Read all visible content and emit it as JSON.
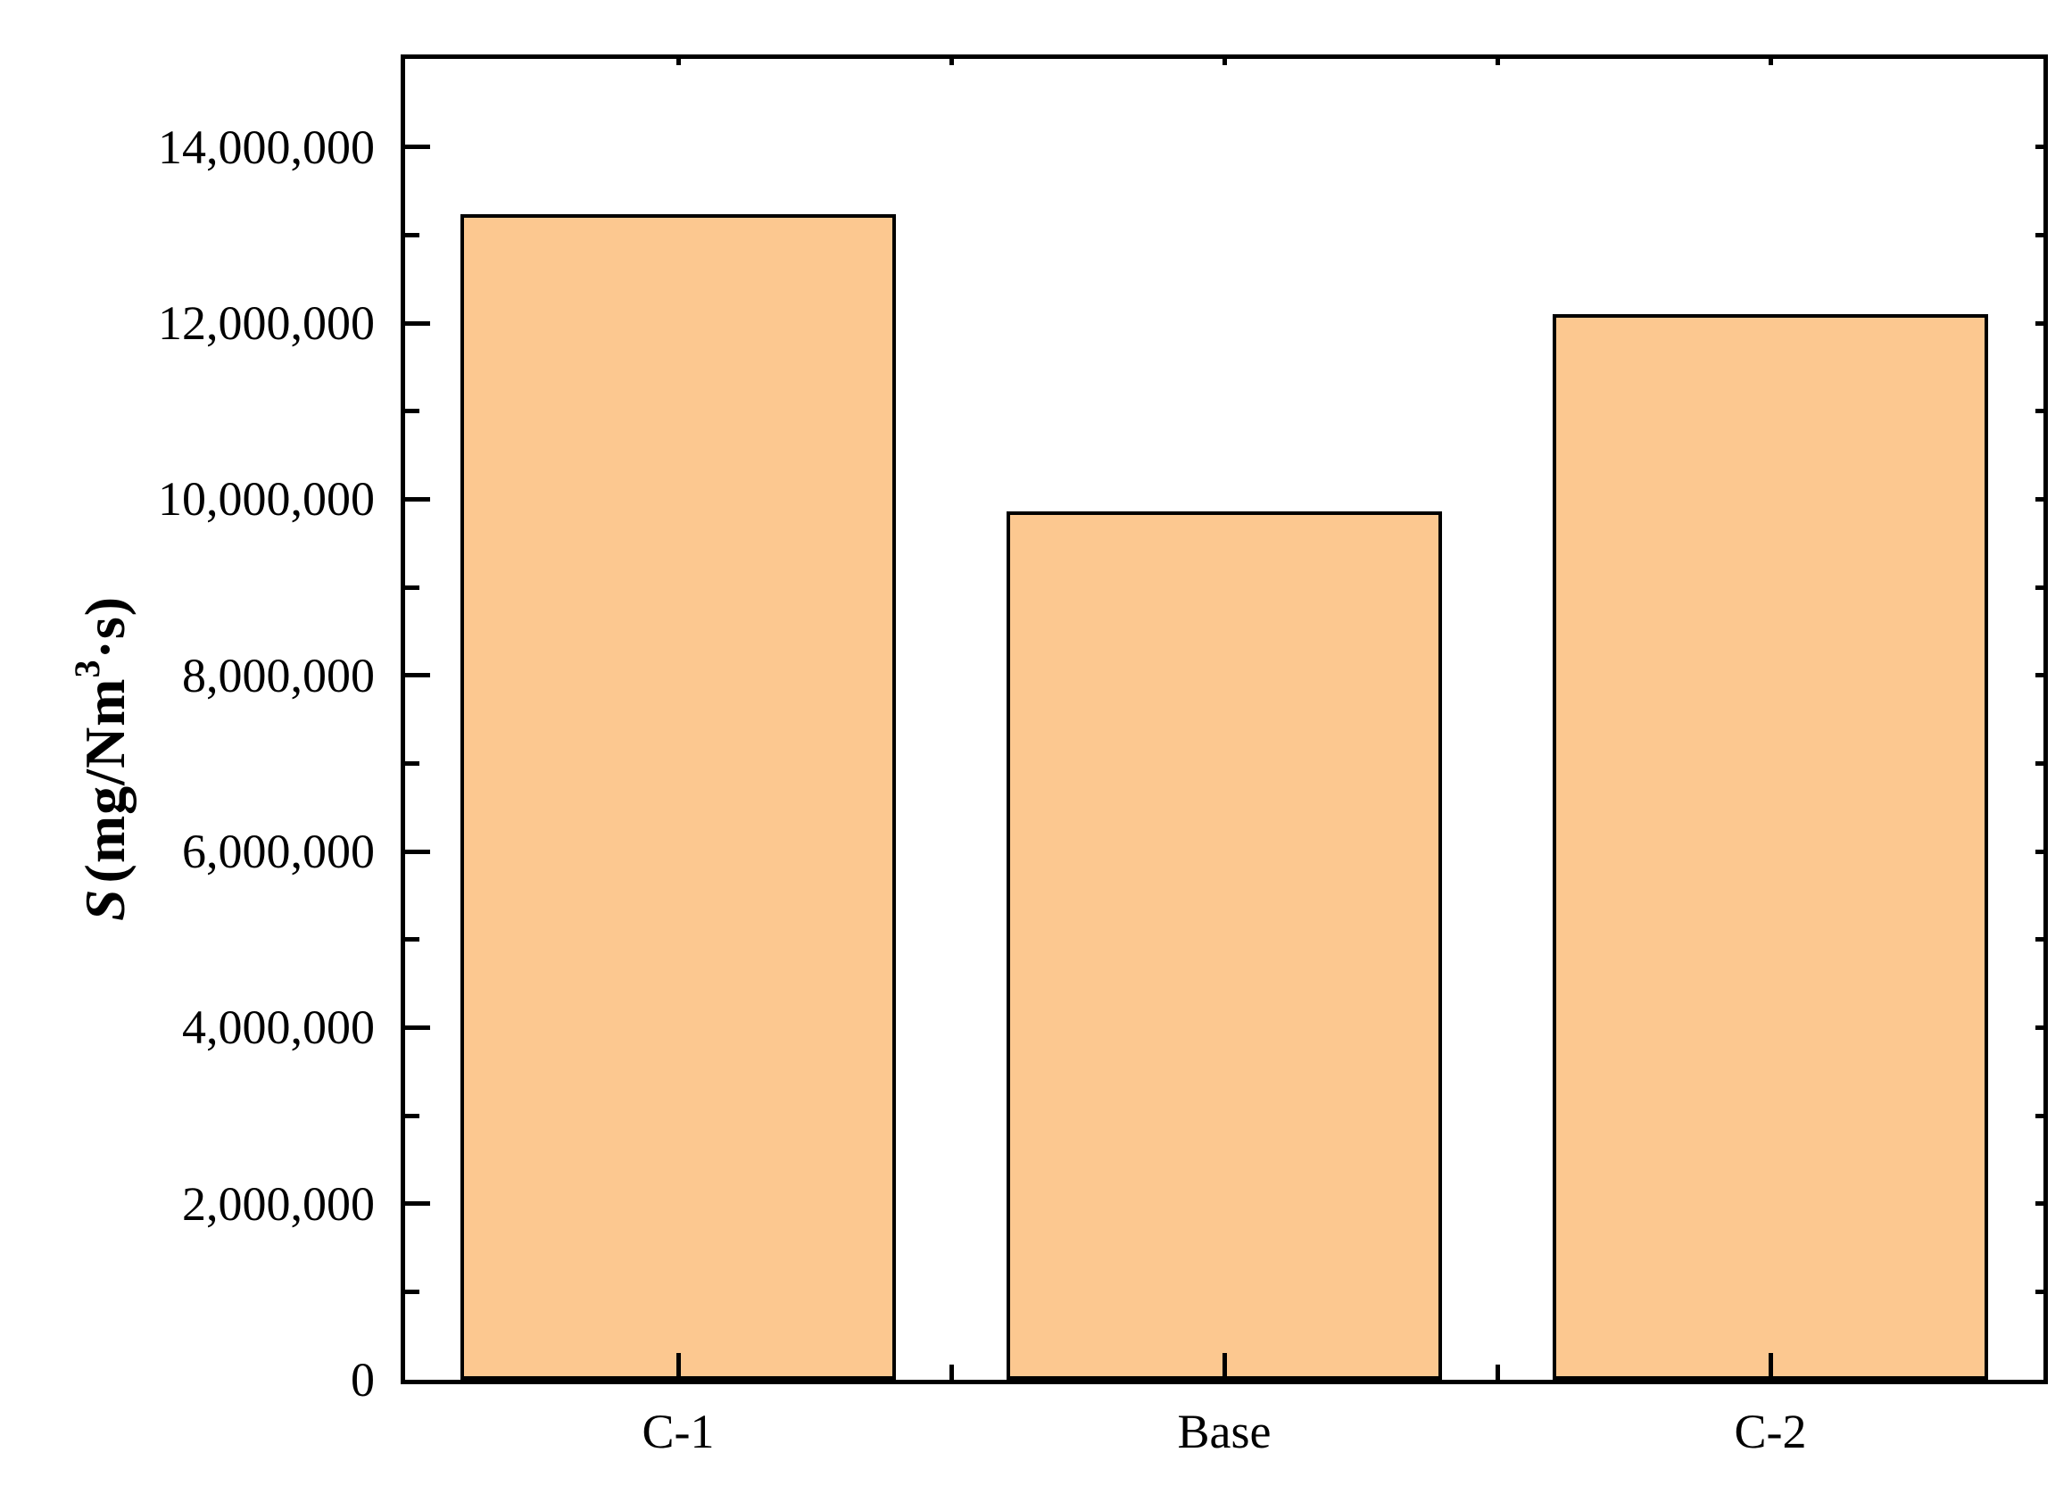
{
  "chart_data": {
    "type": "bar",
    "title": "",
    "categories": [
      "C-1",
      "Base",
      "C-2"
    ],
    "values": [
      13240000,
      9860000,
      12100000
    ],
    "xlabel": "",
    "ylabel": {
      "symbol": "S",
      "prefix": "(mg/Nm",
      "sup": "3",
      "suffix": "·s)"
    },
    "ylim": [
      0,
      15000000
    ],
    "ytick_step": 2000000,
    "yminor_step": 1000000,
    "yticks": [
      {
        "value": 0,
        "label": "0"
      },
      {
        "value": 2000000,
        "label": "2,000,000"
      },
      {
        "value": 4000000,
        "label": "4,000,000"
      },
      {
        "value": 6000000,
        "label": "6,000,000"
      },
      {
        "value": 8000000,
        "label": "8,000,000"
      },
      {
        "value": 10000000,
        "label": "10,000,000"
      },
      {
        "value": 12000000,
        "label": "12,000,000"
      },
      {
        "value": 14000000,
        "label": "14,000,000"
      }
    ],
    "grid": false,
    "legend": null,
    "colors": {
      "bar_fill": "#FCC890",
      "bar_border": "#000000",
      "axis": "#000000",
      "background": "#FFFFFF"
    }
  }
}
